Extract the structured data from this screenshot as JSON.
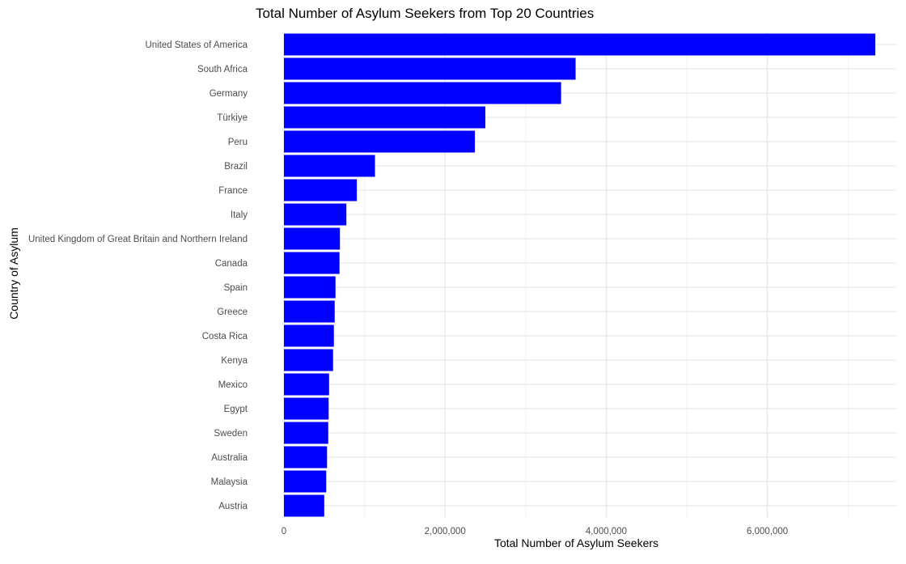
{
  "chart_data": {
    "type": "bar",
    "orientation": "horizontal",
    "title": "Total Number of Asylum Seekers from Top 20 Countries",
    "xlabel": "Total Number of Asylum Seekers",
    "ylabel": "Country of Asylum",
    "xlim": [
      0,
      7600000
    ],
    "x_ticks": [
      0,
      2000000,
      4000000,
      6000000
    ],
    "x_tick_labels": [
      "0",
      "2,000,000",
      "4,000,000",
      "6,000,000"
    ],
    "grid": true,
    "bar_color": "#0000ff",
    "categories": [
      "United States of America",
      "South Africa",
      "Germany",
      "Türkiye",
      "Peru",
      "Brazil",
      "France",
      "Italy",
      "United Kingdom of Great Britain and Northern Ireland",
      "Canada",
      "Spain",
      "Greece",
      "Costa Rica",
      "Kenya",
      "Mexico",
      "Egypt",
      "Sweden",
      "Australia",
      "Malaysia",
      "Austria"
    ],
    "values": [
      7340000,
      3620000,
      3440000,
      2500000,
      2370000,
      1130000,
      905000,
      775000,
      695000,
      690000,
      640000,
      630000,
      620000,
      610000,
      560000,
      555000,
      550000,
      535000,
      525000,
      500000
    ]
  }
}
